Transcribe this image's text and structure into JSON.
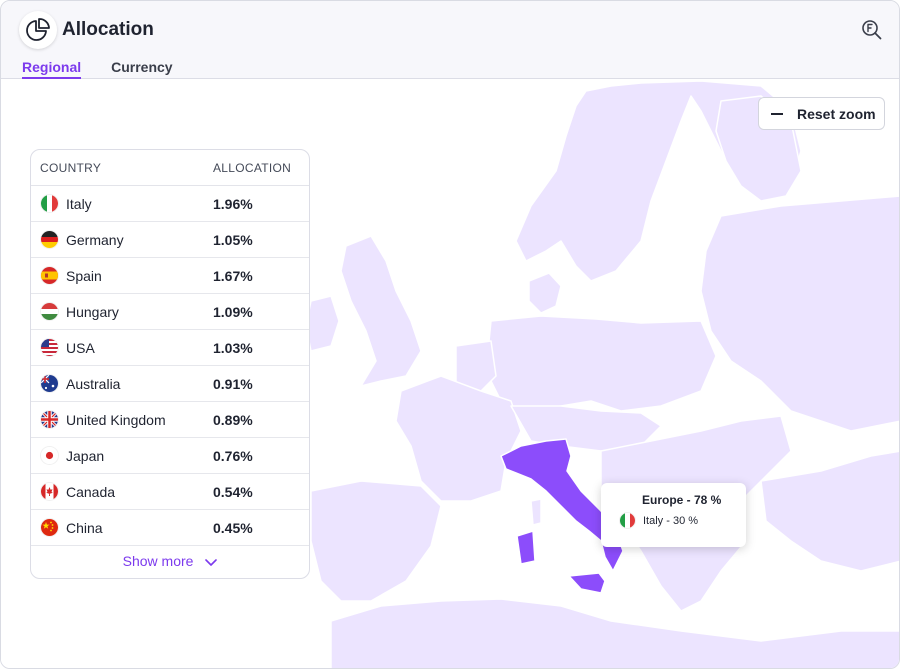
{
  "app": {
    "title": "Allocation",
    "settings_icon": "search-settings-icon"
  },
  "tabs": [
    {
      "label": "Regional",
      "active": true
    },
    {
      "label": "Currency",
      "active": false
    }
  ],
  "map": {
    "reset_zoom_label": "Reset zoom",
    "highlight_color": "#8c4dfb",
    "land_color": "#ece4ff"
  },
  "table": {
    "headers": {
      "country": "COUNTRY",
      "allocation": "ALLOCATION"
    },
    "rows": [
      {
        "country": "Italy",
        "allocation": "1.96%",
        "flag": "it"
      },
      {
        "country": "Germany",
        "allocation": "1.05%",
        "flag": "de"
      },
      {
        "country": "Spain",
        "allocation": "1.67%",
        "flag": "es"
      },
      {
        "country": "Hungary",
        "allocation": "1.09%",
        "flag": "hu"
      },
      {
        "country": "USA",
        "allocation": "1.03%",
        "flag": "us"
      },
      {
        "country": "Australia",
        "allocation": "0.91%",
        "flag": "au"
      },
      {
        "country": "United Kingdom",
        "allocation": "0.89%",
        "flag": "gb"
      },
      {
        "country": "Japan",
        "allocation": "0.76%",
        "flag": "jp"
      },
      {
        "country": "Canada",
        "allocation": "0.54%",
        "flag": "ca"
      },
      {
        "country": "China",
        "allocation": "0.45%",
        "flag": "cn"
      }
    ],
    "show_more_label": "Show more"
  },
  "tooltip": {
    "region": "Europe - 78 %",
    "country": "Italy - 30 %"
  },
  "colors": {
    "accent": "#7c3aed"
  }
}
